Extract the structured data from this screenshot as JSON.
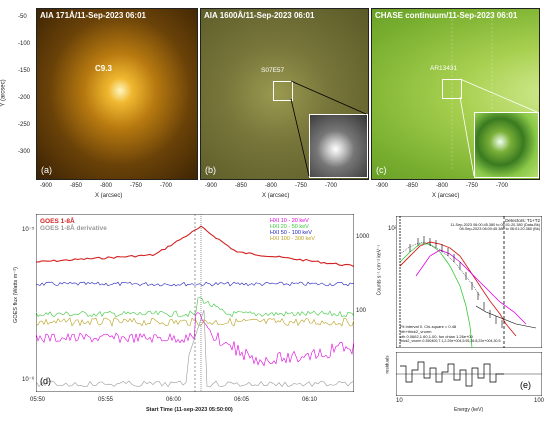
{
  "top": {
    "ylabel": "Y (arcsec)",
    "yticks": [
      "-50",
      "-100",
      "-150",
      "-200",
      "-250",
      "-300"
    ],
    "xticks": [
      "-900",
      "-850",
      "-800",
      "-750",
      "-700"
    ],
    "xlabel": "X (arcsec)",
    "panels": [
      {
        "title": "AIA 171Å/11-Sep-2023 06:01",
        "label": "(a)",
        "annotation": "C9.3",
        "color": "#c98a12"
      },
      {
        "title": "AIA 1600Å/11-Sep-2023 06:01",
        "label": "(b)",
        "annotation": "S07E57",
        "color": "#8f8a3c"
      },
      {
        "title": "CHASE continuum/11-Sep-2023 06:01",
        "label": "(c)",
        "annotation": "AR13431",
        "color": "#8cbf3a"
      }
    ]
  },
  "panel_d": {
    "label": "(d)",
    "left_legend": [
      {
        "text": "GOES 1-8Å",
        "color": "#d22020"
      },
      {
        "text": "GOES 1-8Å derivative",
        "color": "#9a9a9a"
      }
    ],
    "right_legend": [
      {
        "text": "HXI 10 - 20 keV",
        "color": "#e000e0"
      },
      {
        "text": "HXI 20 - 50 keV",
        "color": "#38c838"
      },
      {
        "text": "HXI 50 - 100 keV",
        "color": "#2020c0"
      },
      {
        "text": "HXI 100 - 300 keV",
        "color": "#b8a020"
      }
    ],
    "ylabel": "GOES flux (Watts m⁻²)",
    "ytick_top": "10⁻⁵",
    "ytick_bottom": "10⁻⁶",
    "right_ticks": [
      "1000",
      "100"
    ],
    "xticks": [
      "05:50",
      "05:55",
      "06:00",
      "06:05",
      "06:10"
    ],
    "xlabel": "Start Time (11-sep-2023 05:50:00)"
  },
  "panel_e": {
    "label": "(e)",
    "ylabel": "Counts s⁻¹ cm⁻² keV⁻¹",
    "ytick": "10²",
    "xticks": [
      "10",
      "100"
    ],
    "xlabel": "Energy (keV)",
    "residual_label": "residuals",
    "header_lines": [
      "Detectors: T1+T2",
      "11-Sep-2023 06:00:45.380 to 06:01:20.380 (Data-Bk)",
      "08-Sep-2023 08:00:45.380 to 06:01:20.380 (Bk)"
    ],
    "fit_lines": [
      "Fit Interval 0. Chi-square = 0.48",
      "vth+thick2_vnorm",
      "vth 0.0662,1.60,1.00, fun chian 1.26e+00",
      "thick2_vnorm 0.350400,7.1,2.29e+004,5.95,26.8,22e+004,30.5"
    ]
  }
}
